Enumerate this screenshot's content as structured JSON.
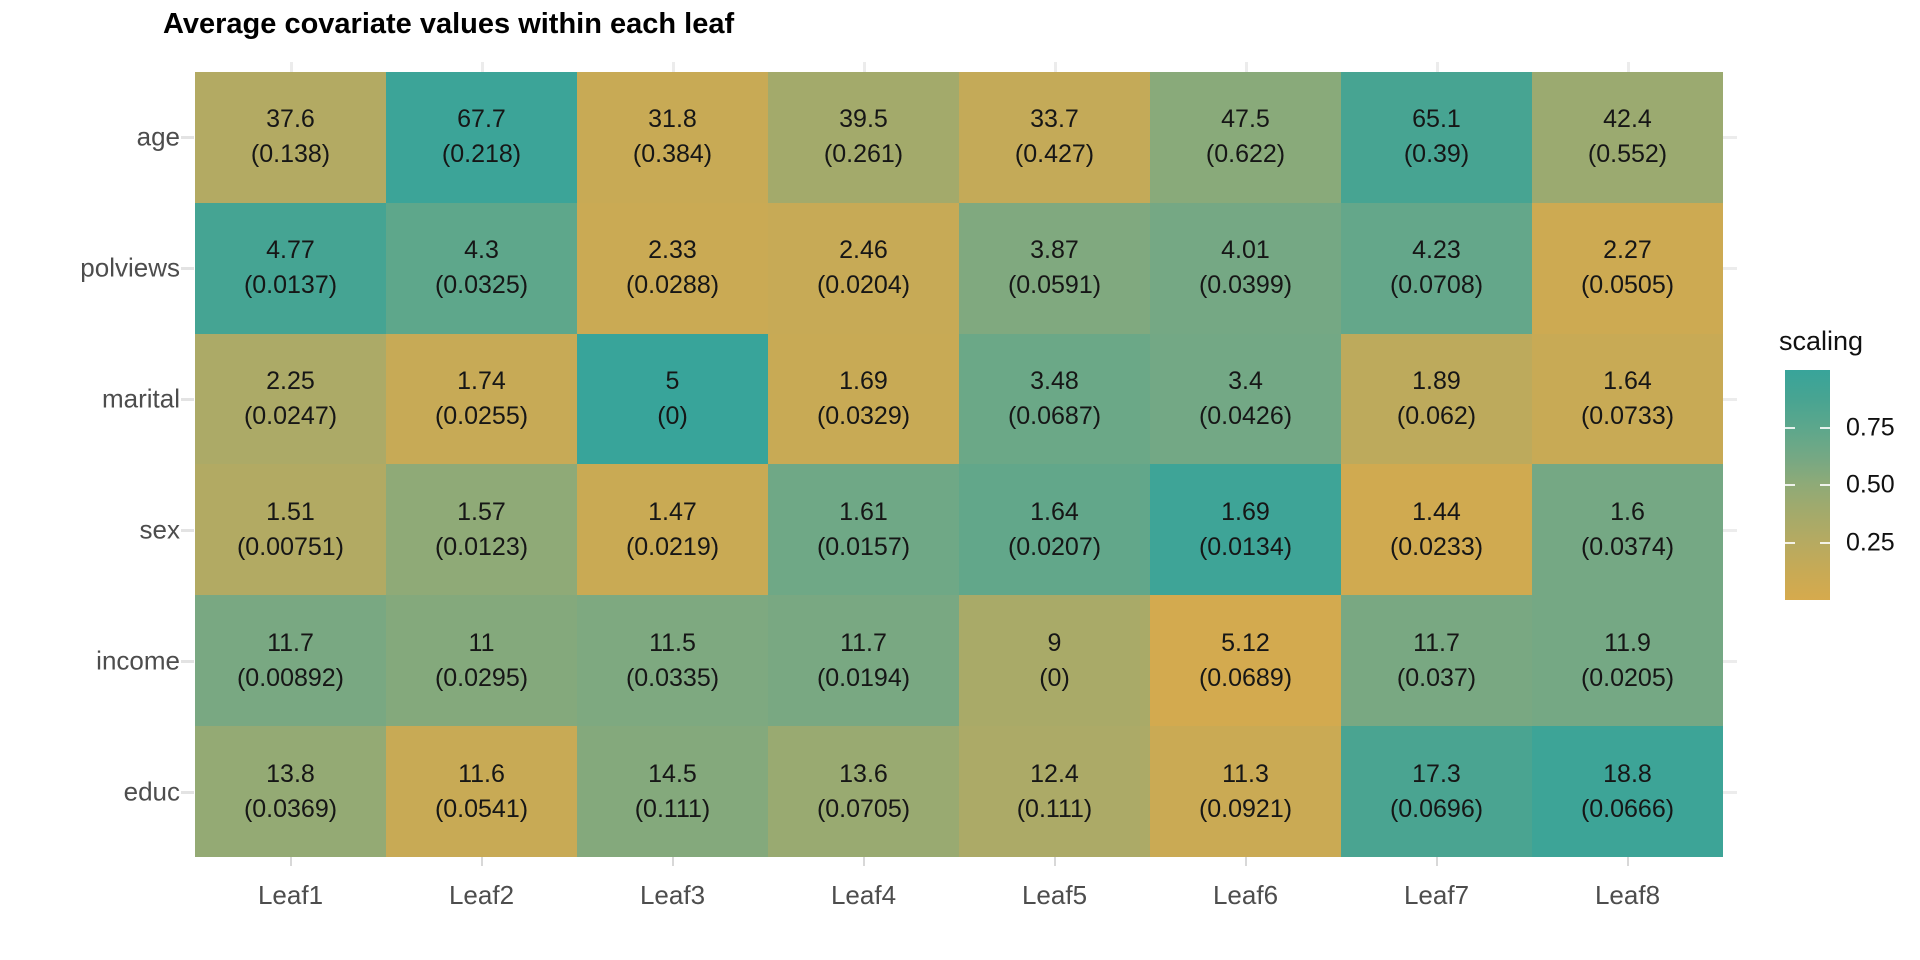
{
  "chart_data": {
    "type": "heatmap",
    "title": "Average covariate values within each leaf",
    "x_categories": [
      "Leaf1",
      "Leaf2",
      "Leaf3",
      "Leaf4",
      "Leaf5",
      "Leaf6",
      "Leaf7",
      "Leaf8"
    ],
    "y_categories": [
      "age",
      "polviews",
      "marital",
      "sex",
      "income",
      "educ"
    ],
    "rows": [
      {
        "name": "age",
        "values": [
          "37.6",
          "67.7",
          "31.8",
          "39.5",
          "33.7",
          "47.5",
          "65.1",
          "42.4"
        ],
        "se": [
          "(0.138)",
          "(0.218)",
          "(0.384)",
          "(0.261)",
          "(0.427)",
          "(0.622)",
          "(0.39)",
          "(0.552)"
        ],
        "scaling": [
          0.27,
          0.97,
          0.12,
          0.38,
          0.15,
          0.53,
          0.88,
          0.43
        ]
      },
      {
        "name": "polviews",
        "values": [
          "4.77",
          "4.3",
          "2.33",
          "2.46",
          "3.87",
          "4.01",
          "4.23",
          "2.27"
        ],
        "se": [
          "(0.0137)",
          "(0.0325)",
          "(0.0288)",
          "(0.0204)",
          "(0.0591)",
          "(0.0399)",
          "(0.0708)",
          "(0.0505)"
        ],
        "scaling": [
          0.9,
          0.74,
          0.1,
          0.13,
          0.57,
          0.62,
          0.71,
          0.08
        ]
      },
      {
        "name": "marital",
        "values": [
          "2.25",
          "1.74",
          "5",
          "1.69",
          "3.48",
          "3.4",
          "1.89",
          "1.64"
        ],
        "se": [
          "(0.0247)",
          "(0.0255)",
          "(0)",
          "(0.0329)",
          "(0.0687)",
          "(0.0426)",
          "(0.062)",
          "(0.0733)"
        ],
        "scaling": [
          0.32,
          0.13,
          1.0,
          0.12,
          0.67,
          0.63,
          0.2,
          0.12
        ]
      },
      {
        "name": "sex",
        "values": [
          "1.51",
          "1.57",
          "1.47",
          "1.61",
          "1.64",
          "1.69",
          "1.44",
          "1.6"
        ],
        "se": [
          "(0.00751)",
          "(0.0123)",
          "(0.0219)",
          "(0.0157)",
          "(0.0207)",
          "(0.0134)",
          "(0.0233)",
          "(0.0374)"
        ],
        "scaling": [
          0.28,
          0.5,
          0.11,
          0.65,
          0.72,
          0.95,
          0.05,
          0.62
        ]
      },
      {
        "name": "income",
        "values": [
          "11.7",
          "11",
          "11.5",
          "11.7",
          "9",
          "5.12",
          "11.7",
          "11.9"
        ],
        "se": [
          "(0.00892)",
          "(0.0295)",
          "(0.0335)",
          "(0.0194)",
          "(0)",
          "(0.0689)",
          "(0.037)",
          "(0.0205)"
        ],
        "scaling": [
          0.6,
          0.55,
          0.58,
          0.6,
          0.34,
          0.03,
          0.6,
          0.62
        ]
      },
      {
        "name": "educ",
        "values": [
          "13.8",
          "11.6",
          "14.5",
          "13.6",
          "12.4",
          "11.3",
          "17.3",
          "18.8"
        ],
        "se": [
          "(0.0369)",
          "(0.0541)",
          "(0.111)",
          "(0.0705)",
          "(0.111)",
          "(0.0921)",
          "(0.0696)",
          "(0.0666)"
        ],
        "scaling": [
          0.47,
          0.12,
          0.55,
          0.44,
          0.32,
          0.1,
          0.86,
          0.96
        ]
      }
    ],
    "legend": {
      "title": "scaling",
      "tick_labels": [
        "0.75",
        "0.50",
        "0.25"
      ],
      "tick_values": [
        0.75,
        0.5,
        0.25
      ],
      "range": [
        0,
        1
      ]
    },
    "color_scale": {
      "low": "#D6AA4D",
      "high": "#38A49A",
      "stops": [
        [
          0,
          "#D6AA4D"
        ],
        [
          0.12,
          "#C8AA55"
        ],
        [
          0.25,
          "#B6AA61"
        ],
        [
          0.4,
          "#A0AA6D"
        ],
        [
          0.5,
          "#8FAA77"
        ],
        [
          0.62,
          "#75A884"
        ],
        [
          0.75,
          "#5CA78C"
        ],
        [
          0.88,
          "#47A492"
        ],
        [
          1,
          "#38A49A"
        ]
      ]
    },
    "layout": {
      "grid": "off-panel light gray stubs",
      "legend_position": "right"
    }
  }
}
